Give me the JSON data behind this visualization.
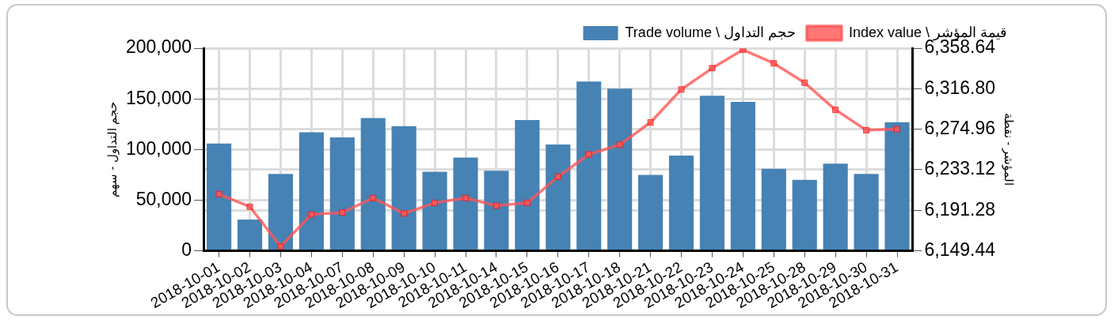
{
  "chart_data": {
    "type": "bar",
    "categories": [
      "2018-10-01",
      "2018-10-02",
      "2018-10-03",
      "2018-10-04",
      "2018-10-07",
      "2018-10-08",
      "2018-10-09",
      "2018-10-10",
      "2018-10-11",
      "2018-10-14",
      "2018-10-15",
      "2018-10-16",
      "2018-10-17",
      "2018-10-18",
      "2018-10-21",
      "2018-10-22",
      "2018-10-23",
      "2018-10-24",
      "2018-10-25",
      "2018-10-28",
      "2018-10-29",
      "2018-10-30",
      "2018-10-31"
    ],
    "series": [
      {
        "name": "Trade volume \\ حجم التداول",
        "color": "#4682b4",
        "values": [
          106000,
          31000,
          76000,
          117000,
          112000,
          131000,
          123000,
          78000,
          92000,
          79000,
          129000,
          105000,
          167000,
          160000,
          75000,
          94000,
          153000,
          147000,
          81000,
          70000,
          86000,
          76000,
          127000
        ]
      },
      {
        "name": "Index value \\ قيمة المؤشر",
        "type": "line",
        "axis": "y2",
        "color": "#ff5555",
        "values": [
          6208,
          6195,
          6154,
          6187,
          6189,
          6204,
          6188,
          6199,
          6204,
          6196,
          6199,
          6226,
          6249,
          6259,
          6282,
          6316,
          6338,
          6357,
          6343,
          6323,
          6295,
          6274,
          6275
        ]
      }
    ],
    "ylabel": "حجم التداول - سهم",
    "y2label": "المؤشر - نقطة",
    "ylim": [
      0,
      200000
    ],
    "yticks": [
      {
        "value": 0,
        "label": "0"
      },
      {
        "value": 50000,
        "label": "50,000"
      },
      {
        "value": 100000,
        "label": "100,000"
      },
      {
        "value": 150000,
        "label": "150,000"
      },
      {
        "value": 200000,
        "label": "200,000"
      }
    ],
    "y2lim": [
      6149.44,
      6358.64
    ],
    "y2ticks": [
      {
        "value": 6149.44,
        "label": "6,149.44"
      },
      {
        "value": 6191.28,
        "label": "6,191.28"
      },
      {
        "value": 6233.12,
        "label": "6,233.12"
      },
      {
        "value": 6274.96,
        "label": "6,274.96"
      },
      {
        "value": 6316.8,
        "label": "6,316.80"
      },
      {
        "value": 6358.64,
        "label": "6,358.64"
      }
    ],
    "grid": true,
    "legend": "top right",
    "marker": "square",
    "line_style": "solid"
  }
}
